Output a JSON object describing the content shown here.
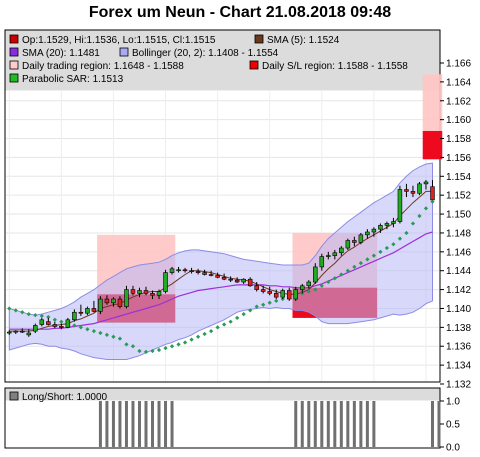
{
  "chart": {
    "title": "Forex um Neun - Chart 21.08.2018 09:48",
    "legend": [
      {
        "label": "Op:1.1529, Hi:1.1536, Lo:1.1515, Cl:1.1515",
        "color": "#cc0000"
      },
      {
        "label": "SMA (5): 1.1524",
        "color": "#6b3a1e"
      },
      {
        "label": "SMA (20): 1.1481",
        "color": "#8a2be2"
      },
      {
        "label": "Bollinger (20, 2): 1.1408 - 1.1554",
        "color": "#a9a9f5"
      },
      {
        "label": "Daily trading region: 1.1648 - 1.1588",
        "color": "#ffcccc"
      },
      {
        "label": "Daily S/L region: 1.1588 - 1.1558",
        "color": "#ee0000"
      },
      {
        "label": "Parabolic SAR: 1.1513",
        "color": "#22bb22"
      }
    ],
    "lower_legend": {
      "label": "Long/Short: 1.0000",
      "color": "#808080"
    }
  },
  "chart_data": [
    {
      "type": "candlestick",
      "title": "Forex um Neun - Chart 21.08.2018 09:48",
      "ylim": [
        1.132,
        1.1665
      ],
      "y_ticks": [
        "1.132",
        "1.134",
        "1.136",
        "1.138",
        "1.140",
        "1.142",
        "1.144",
        "1.146",
        "1.148",
        "1.150",
        "1.152",
        "1.154",
        "1.156",
        "1.158",
        "1.160",
        "1.162",
        "1.164",
        "1.166"
      ],
      "grid": true,
      "candles": [
        [
          1.1375,
          1.1377,
          1.1372,
          1.1375
        ],
        [
          1.1375,
          1.1377,
          1.1373,
          1.1376
        ],
        [
          1.1376,
          1.1379,
          1.1374,
          1.1375
        ],
        [
          1.1372,
          1.1378,
          1.137,
          1.1374
        ],
        [
          1.1376,
          1.1384,
          1.1374,
          1.1382
        ],
        [
          1.1383,
          1.139,
          1.1381,
          1.1388
        ],
        [
          1.1386,
          1.139,
          1.1382,
          1.1383
        ],
        [
          1.1383,
          1.1386,
          1.1379,
          1.1381
        ],
        [
          1.1381,
          1.1384,
          1.1378,
          1.138
        ],
        [
          1.138,
          1.139,
          1.1379,
          1.1388
        ],
        [
          1.1388,
          1.1399,
          1.1386,
          1.1396
        ],
        [
          1.1396,
          1.1404,
          1.1392,
          1.1395
        ],
        [
          1.1395,
          1.1402,
          1.1393,
          1.14
        ],
        [
          1.14,
          1.1408,
          1.1396,
          1.1397
        ],
        [
          1.1397,
          1.1413,
          1.1394,
          1.141
        ],
        [
          1.141,
          1.1414,
          1.1404,
          1.1406
        ],
        [
          1.1406,
          1.1412,
          1.1402,
          1.141
        ],
        [
          1.141,
          1.1413,
          1.14,
          1.1402
        ],
        [
          1.1402,
          1.1424,
          1.14,
          1.142
        ],
        [
          1.142,
          1.1424,
          1.1414,
          1.1416
        ],
        [
          1.1416,
          1.1422,
          1.1412,
          1.1419
        ],
        [
          1.1419,
          1.1423,
          1.1414,
          1.1416
        ],
        [
          1.1416,
          1.1419,
          1.141,
          1.1414
        ],
        [
          1.1414,
          1.142,
          1.141,
          1.1418
        ],
        [
          1.1418,
          1.1441,
          1.1416,
          1.1438
        ],
        [
          1.1438,
          1.1444,
          1.1436,
          1.1442
        ],
        [
          1.144,
          1.1444,
          1.1438,
          1.1441
        ],
        [
          1.1441,
          1.1443,
          1.1438,
          1.144
        ],
        [
          1.144,
          1.1443,
          1.1437,
          1.1439
        ],
        [
          1.1439,
          1.1442,
          1.1436,
          1.1438
        ],
        [
          1.1438,
          1.1441,
          1.1435,
          1.1436
        ],
        [
          1.1436,
          1.144,
          1.1434,
          1.1435
        ],
        [
          1.1435,
          1.1438,
          1.1432,
          1.1433
        ],
        [
          1.1433,
          1.1437,
          1.143,
          1.1431
        ],
        [
          1.1431,
          1.1434,
          1.1428,
          1.143
        ],
        [
          1.143,
          1.1433,
          1.1427,
          1.1428
        ],
        [
          1.1428,
          1.1432,
          1.1426,
          1.1431
        ],
        [
          1.1431,
          1.1433,
          1.1423,
          1.1424
        ],
        [
          1.1424,
          1.1428,
          1.1418,
          1.142
        ],
        [
          1.142,
          1.1424,
          1.1416,
          1.1418
        ],
        [
          1.1418,
          1.1423,
          1.1414,
          1.1416
        ],
        [
          1.1416,
          1.142,
          1.141,
          1.1412
        ],
        [
          1.1412,
          1.1421,
          1.141,
          1.1419
        ],
        [
          1.1419,
          1.1422,
          1.1408,
          1.141
        ],
        [
          1.141,
          1.1423,
          1.1408,
          1.142
        ],
        [
          1.142,
          1.1426,
          1.1416,
          1.1424
        ],
        [
          1.1424,
          1.143,
          1.1421,
          1.1428
        ],
        [
          1.1428,
          1.1448,
          1.1426,
          1.1444
        ],
        [
          1.1444,
          1.1458,
          1.144,
          1.1455
        ],
        [
          1.1455,
          1.146,
          1.1452,
          1.1456
        ],
        [
          1.1456,
          1.1462,
          1.1452,
          1.1459
        ],
        [
          1.1459,
          1.1466,
          1.1456,
          1.1464
        ],
        [
          1.1464,
          1.1474,
          1.1462,
          1.1472
        ],
        [
          1.1472,
          1.1476,
          1.1466,
          1.147
        ],
        [
          1.147,
          1.148,
          1.1468,
          1.1478
        ],
        [
          1.1478,
          1.1484,
          1.1474,
          1.1481
        ],
        [
          1.1481,
          1.1486,
          1.1476,
          1.1484
        ],
        [
          1.1484,
          1.149,
          1.148,
          1.1488
        ],
        [
          1.1488,
          1.1492,
          1.1484,
          1.149
        ],
        [
          1.149,
          1.1496,
          1.1486,
          1.1492
        ],
        [
          1.1492,
          1.153,
          1.149,
          1.1526
        ],
        [
          1.1526,
          1.1532,
          1.1518,
          1.1524
        ],
        [
          1.1524,
          1.153,
          1.1518,
          1.1522
        ],
        [
          1.1522,
          1.1534,
          1.152,
          1.1532
        ],
        [
          1.1532,
          1.1536,
          1.1526,
          1.1534
        ],
        [
          1.1529,
          1.1536,
          1.1515,
          1.1515
        ]
      ],
      "sma5": [
        1.1376,
        1.1376,
        1.1376,
        1.1376,
        1.1377,
        1.1379,
        1.1381,
        1.1382,
        1.1383,
        1.1384,
        1.1387,
        1.1389,
        1.1392,
        1.1395,
        1.14,
        1.1402,
        1.1404,
        1.1405,
        1.1409,
        1.1412,
        1.1415,
        1.1417,
        1.1418,
        1.1418,
        1.1422,
        1.1426,
        1.1431,
        1.1436,
        1.144,
        1.144,
        1.1439,
        1.1438,
        1.1436,
        1.1434,
        1.1432,
        1.1431,
        1.143,
        1.1429,
        1.1426,
        1.1423,
        1.142,
        1.1418,
        1.1416,
        1.1415,
        1.1415,
        1.1417,
        1.142,
        1.1427,
        1.1435,
        1.1442,
        1.1448,
        1.1455,
        1.1461,
        1.1465,
        1.147,
        1.1474,
        1.1478,
        1.1482,
        1.1486,
        1.149,
        1.1498,
        1.1505,
        1.1512,
        1.1518,
        1.1524,
        1.1524
      ],
      "sma20": [
        1.1378,
        1.1378,
        1.1378,
        1.1378,
        1.1378,
        1.1378,
        1.1378,
        1.1379,
        1.1379,
        1.138,
        1.1381,
        1.1382,
        1.1383,
        1.1384,
        1.1386,
        1.1388,
        1.139,
        1.1392,
        1.1394,
        1.1396,
        1.1398,
        1.14,
        1.1402,
        1.1404,
        1.1407,
        1.141,
        1.1413,
        1.1415,
        1.1417,
        1.1419,
        1.142,
        1.1421,
        1.1422,
        1.1423,
        1.1424,
        1.1425,
        1.1425,
        1.1425,
        1.1425,
        1.1425,
        1.1424,
        1.1424,
        1.1423,
        1.1423,
        1.1422,
        1.1422,
        1.1422,
        1.1424,
        1.1426,
        1.1429,
        1.1432,
        1.1435,
        1.1438,
        1.1441,
        1.1444,
        1.1447,
        1.145,
        1.1453,
        1.1456,
        1.1459,
        1.1463,
        1.1467,
        1.1471,
        1.1475,
        1.1479,
        1.1481
      ],
      "bollinger_upper": [
        1.14,
        1.1398,
        1.1396,
        1.1394,
        1.1393,
        1.1394,
        1.1396,
        1.1398,
        1.14,
        1.1403,
        1.1407,
        1.1412,
        1.1416,
        1.142,
        1.1425,
        1.143,
        1.1434,
        1.1438,
        1.1442,
        1.1444,
        1.1446,
        1.1447,
        1.1448,
        1.1449,
        1.1452,
        1.1456,
        1.1459,
        1.1461,
        1.1462,
        1.1462,
        1.1461,
        1.146,
        1.1459,
        1.1458,
        1.1456,
        1.1454,
        1.1452,
        1.1451,
        1.145,
        1.1449,
        1.1448,
        1.1447,
        1.1446,
        1.1446,
        1.1446,
        1.1446,
        1.1448,
        1.1456,
        1.1466,
        1.1474,
        1.148,
        1.1486,
        1.1492,
        1.1497,
        1.1502,
        1.1507,
        1.1512,
        1.1516,
        1.152,
        1.1524,
        1.1533,
        1.154,
        1.1546,
        1.155,
        1.1553,
        1.1554
      ],
      "bollinger_lower": [
        1.1356,
        1.1358,
        1.136,
        1.1362,
        1.1363,
        1.1362,
        1.136,
        1.136,
        1.1358,
        1.1357,
        1.1355,
        1.1352,
        1.135,
        1.1348,
        1.1347,
        1.1346,
        1.1346,
        1.1346,
        1.1346,
        1.1348,
        1.135,
        1.1353,
        1.1356,
        1.1359,
        1.1362,
        1.1364,
        1.1367,
        1.1369,
        1.1372,
        1.1376,
        1.1379,
        1.1382,
        1.1385,
        1.1388,
        1.1392,
        1.1396,
        1.1398,
        1.1399,
        1.14,
        1.1401,
        1.14,
        1.1401,
        1.14,
        1.14,
        1.1398,
        1.1398,
        1.1396,
        1.1392,
        1.1386,
        1.1384,
        1.1384,
        1.1384,
        1.1384,
        1.1385,
        1.1386,
        1.1387,
        1.1388,
        1.139,
        1.1392,
        1.1394,
        1.1393,
        1.1394,
        1.1396,
        1.14,
        1.1405,
        1.1408
      ],
      "parabolic_sar": [
        1.14,
        1.1398,
        1.1396,
        1.1394,
        1.1393,
        1.1392,
        1.1391,
        1.1388,
        1.1386,
        1.1384,
        1.1382,
        1.138,
        1.1378,
        1.1376,
        1.1374,
        1.1372,
        1.137,
        1.1368,
        1.1362,
        1.136,
        1.1355,
        1.1354,
        1.1355,
        1.1356,
        1.1358,
        1.136,
        1.1362,
        1.1364,
        1.1367,
        1.137,
        1.1373,
        1.1376,
        1.138,
        1.1383,
        1.1386,
        1.139,
        1.1394,
        1.1398,
        1.1402,
        1.1404,
        1.1406,
        1.1408,
        1.141,
        1.1412,
        1.1414,
        1.1416,
        1.1418,
        1.142,
        1.1424,
        1.1428,
        1.1432,
        1.1436,
        1.144,
        1.1444,
        1.1448,
        1.1452,
        1.1456,
        1.146,
        1.1464,
        1.1468,
        1.1474,
        1.148,
        1.149,
        1.1498,
        1.1506,
        1.1513
      ],
      "daily_trading_regions": [
        {
          "start": 14,
          "end": 25,
          "low": 1.1415,
          "high": 1.1478
        },
        {
          "start": 44,
          "end": 56,
          "low": 1.1395,
          "high": 1.148
        },
        {
          "start": 64,
          "end": 66,
          "low": 1.1588,
          "high": 1.1648
        }
      ],
      "daily_sl_regions": [
        {
          "start": 14,
          "end": 25,
          "low": 1.1385,
          "high": 1.1415
        },
        {
          "start": 44,
          "end": 56,
          "low": 1.139,
          "high": 1.1422
        },
        {
          "start": 64,
          "end": 66,
          "low": 1.1558,
          "high": 1.1588
        }
      ]
    },
    {
      "type": "bar",
      "title": "Long/Short: 1.0000",
      "ylim": [
        0.0,
        1.0
      ],
      "y_ticks": [
        "0.0",
        "0.5",
        "1.0"
      ],
      "bar_ranges": [
        [
          14,
          25
        ],
        [
          44,
          56
        ],
        [
          65,
          66
        ]
      ],
      "value": 1.0
    }
  ]
}
